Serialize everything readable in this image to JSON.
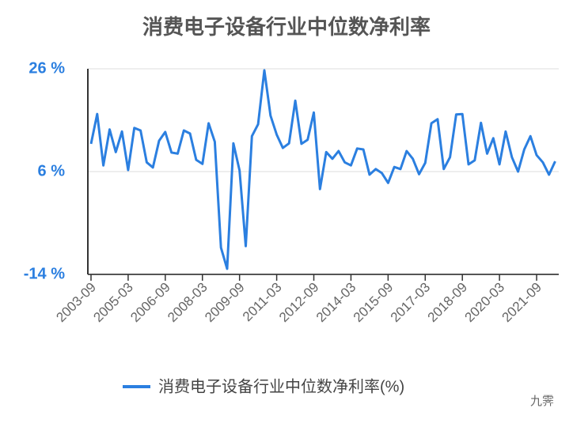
{
  "chart_data": {
    "type": "line",
    "title": "消费电子设备行业中位数净利率",
    "categories": [
      "2003-09",
      null,
      null,
      null,
      null,
      null,
      "2005-03",
      null,
      null,
      null,
      null,
      null,
      "2006-09",
      null,
      null,
      null,
      null,
      null,
      "2008-03",
      null,
      null,
      null,
      null,
      null,
      "2009-09",
      null,
      null,
      null,
      null,
      null,
      "2011-03",
      null,
      null,
      null,
      null,
      null,
      "2012-09",
      null,
      null,
      null,
      null,
      null,
      "2014-03",
      null,
      null,
      null,
      null,
      null,
      "2015-09",
      null,
      null,
      null,
      null,
      null,
      "2017-03",
      null,
      null,
      null,
      null,
      null,
      "2018-09",
      null,
      null,
      null,
      null,
      null,
      "2020-03",
      null,
      null,
      null,
      null,
      null,
      "2021-09",
      null,
      null,
      null
    ],
    "series": [
      {
        "name": "消费电子设备行业中位数净利率(%)",
        "color": "#2b7fe0",
        "values": [
          11.4,
          17.2,
          7.2,
          14.2,
          9.8,
          13.8,
          6.3,
          14.5,
          14,
          7.8,
          6.8,
          12,
          13.7,
          9.7,
          9.5,
          14,
          13.4,
          8.3,
          7.5,
          15.4,
          11.8,
          -8.8,
          -12.9,
          11.5,
          6.2,
          -8.5,
          12.9,
          15.2,
          25.7,
          16.9,
          13.2,
          10.6,
          11.5,
          19.8,
          11.4,
          12.2,
          17.5,
          2.6,
          9.8,
          8.5,
          10,
          7.8,
          7.2,
          10.5,
          10.3,
          5.4,
          6.5,
          5.7,
          3.8,
          6.9,
          6.5,
          10,
          8.5,
          5.5,
          7.7,
          15.4,
          16.2,
          6.5,
          8.8,
          17.1,
          17.2,
          7.4,
          8.2,
          15.5,
          9.5,
          12.5,
          7.4,
          13.8,
          8.8,
          6,
          10.3,
          12.9,
          9.2,
          7.8,
          5.4,
          8
        ]
      }
    ],
    "ylim": [
      -14,
      26
    ],
    "yticks": [
      {
        "value": -14,
        "label": "-14 %"
      },
      {
        "value": 6,
        "label": "6 %"
      },
      {
        "value": 26,
        "label": "26 %"
      }
    ],
    "grid": true,
    "legend": "bottom",
    "watermark": "九霁"
  }
}
